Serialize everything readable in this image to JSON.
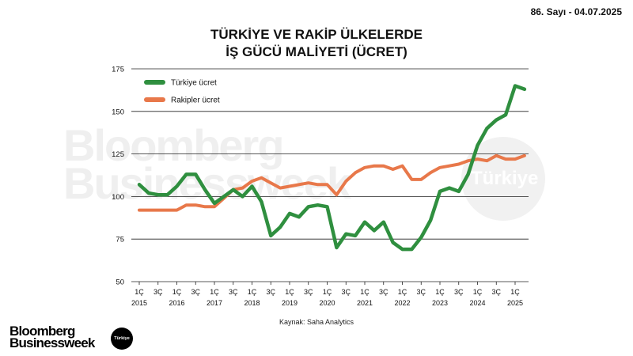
{
  "header": {
    "issue": "86. Sayı - 04.07.2025"
  },
  "footer": {
    "source": "Kaynak: Saha Analytics",
    "logo_line1": "Bloomberg",
    "logo_line2": "Businessweek",
    "logo_badge": "Türkiye"
  },
  "watermark": {
    "line1": "Bloomberg",
    "line2": "Businessweek",
    "badge": "Türkiye"
  },
  "chart_data": {
    "type": "line",
    "title": [
      "TÜRKİYE VE RAKİP ÜLKELERDE",
      "İŞ GÜCÜ MALİYETİ (ÜCRET)"
    ],
    "ylim": [
      50,
      175
    ],
    "yticks": [
      50,
      75,
      100,
      125,
      150,
      175
    ],
    "grid": true,
    "legend": "top-left",
    "x": [
      2015.0,
      2015.25,
      2015.5,
      2015.75,
      2016.0,
      2016.25,
      2016.5,
      2016.75,
      2017.0,
      2017.25,
      2017.5,
      2017.75,
      2018.0,
      2018.25,
      2018.5,
      2018.75,
      2019.0,
      2019.25,
      2019.5,
      2019.75,
      2020.0,
      2020.25,
      2020.5,
      2020.75,
      2021.0,
      2021.25,
      2021.5,
      2021.75,
      2022.0,
      2022.25,
      2022.5,
      2022.75,
      2023.0,
      2023.25,
      2023.5,
      2023.75,
      2024.0,
      2024.25,
      2024.5,
      2024.75,
      2025.0,
      2025.25
    ],
    "xticks": [
      {
        "x": 2015.0,
        "q": "1Ç",
        "year": "2015"
      },
      {
        "x": 2015.5,
        "q": "3Ç",
        "year": ""
      },
      {
        "x": 2016.0,
        "q": "1Ç",
        "year": "2016"
      },
      {
        "x": 2016.5,
        "q": "3Ç",
        "year": ""
      },
      {
        "x": 2017.0,
        "q": "1Ç",
        "year": "2017"
      },
      {
        "x": 2017.5,
        "q": "3Ç",
        "year": ""
      },
      {
        "x": 2018.0,
        "q": "1Ç",
        "year": "2018"
      },
      {
        "x": 2018.5,
        "q": "3Ç",
        "year": ""
      },
      {
        "x": 2019.0,
        "q": "1Ç",
        "year": "2019"
      },
      {
        "x": 2019.5,
        "q": "3Ç",
        "year": ""
      },
      {
        "x": 2020.0,
        "q": "1Ç",
        "year": "2020"
      },
      {
        "x": 2020.5,
        "q": "3Ç",
        "year": ""
      },
      {
        "x": 2021.0,
        "q": "1Ç",
        "year": "2021"
      },
      {
        "x": 2021.5,
        "q": "3Ç",
        "year": ""
      },
      {
        "x": 2022.0,
        "q": "1Ç",
        "year": "2022"
      },
      {
        "x": 2022.5,
        "q": "3Ç",
        "year": ""
      },
      {
        "x": 2023.0,
        "q": "1Ç",
        "year": "2023"
      },
      {
        "x": 2023.5,
        "q": "3Ç",
        "year": ""
      },
      {
        "x": 2024.0,
        "q": "1Ç",
        "year": "2024"
      },
      {
        "x": 2024.5,
        "q": "3Ç",
        "year": ""
      },
      {
        "x": 2025.0,
        "q": "1Ç",
        "year": "2025"
      }
    ],
    "series": [
      {
        "name": "Türkiye ücret",
        "color": "#2f8f3f",
        "values": [
          107,
          102,
          101,
          101,
          106,
          113,
          113,
          104,
          96,
          100,
          104,
          100,
          106,
          97,
          77,
          82,
          90,
          88,
          94,
          95,
          94,
          70,
          78,
          77,
          85,
          80,
          85,
          73,
          69,
          69,
          76,
          86,
          103,
          105,
          103,
          113,
          130,
          140,
          145,
          148,
          165,
          163
        ]
      },
      {
        "name": "Rakipler ücret",
        "color": "#e8784a",
        "values": [
          92,
          92,
          92,
          92,
          92,
          95,
          95,
          94,
          94,
          99,
          104,
          105,
          109,
          111,
          108,
          105,
          106,
          107,
          108,
          107,
          107,
          101,
          109,
          114,
          117,
          118,
          118,
          116,
          118,
          110,
          110,
          114,
          117,
          118,
          119,
          121,
          122,
          121,
          124,
          122,
          122,
          124
        ]
      }
    ]
  }
}
